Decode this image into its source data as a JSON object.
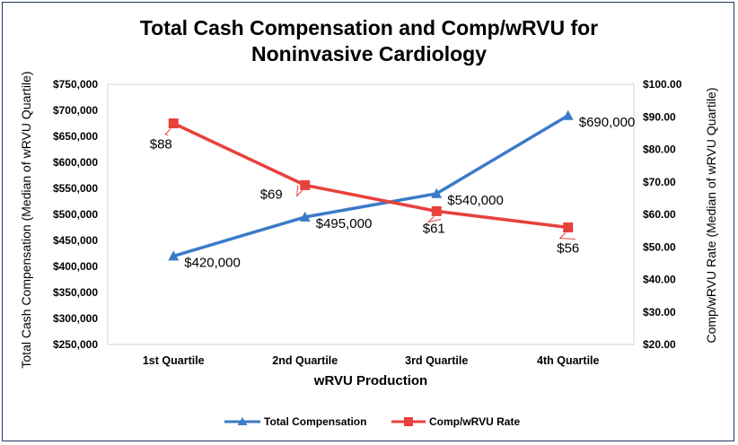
{
  "chart_data": {
    "type": "line",
    "title_line1": "Total Cash Compensation and Comp/wRVU for",
    "title_line2": "Noninvasive Cardiology",
    "xlabel": "wRVU Production",
    "ylabel_left": "Total Cash Compensation (Median of wRVU Quartile)",
    "ylabel_right": "Comp/wRVU Rate (Median of wRVU Quartile)",
    "categories": [
      "1st Quartile",
      "2nd Quartile",
      "3rd Quartile",
      "4th Quartile"
    ],
    "ylim_left": [
      250000,
      750000
    ],
    "ylim_right": [
      20,
      100
    ],
    "yticks_left": [
      "$250,000",
      "$300,000",
      "$350,000",
      "$400,000",
      "$450,000",
      "$500,000",
      "$550,000",
      "$600,000",
      "$650,000",
      "$700,000",
      "$750,000"
    ],
    "yticks_right": [
      "$20.00",
      "$30.00",
      "$40.00",
      "$50.00",
      "$60.00",
      "$70.00",
      "$80.00",
      "$90.00",
      "$100.00"
    ],
    "grid": false,
    "legend_position": "bottom",
    "series": [
      {
        "name": "Total Compensation",
        "axis": "left",
        "color": "#3a7bc8",
        "marker": "triangle",
        "values": [
          420000,
          495000,
          540000,
          690000
        ],
        "labels": [
          "$420,000",
          "$495,000",
          "$540,000",
          "$690,000"
        ]
      },
      {
        "name": "Comp/wRVU Rate",
        "axis": "right",
        "color": "#e8413c",
        "marker": "square",
        "values": [
          88,
          69,
          61,
          56
        ],
        "labels": [
          "$88",
          "$69",
          "$61",
          "$56"
        ]
      }
    ]
  }
}
